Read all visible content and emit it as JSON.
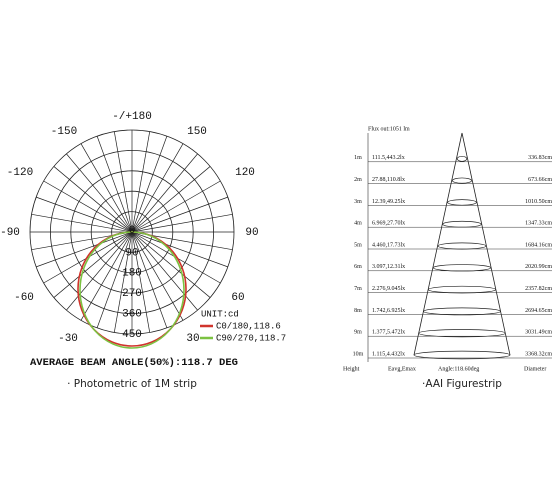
{
  "polar": {
    "angle_labels": [
      "-/+180",
      "150",
      "-150",
      "120",
      "-120",
      "90",
      "-90",
      "60",
      "-60",
      "30",
      "-30"
    ],
    "ring_labels": [
      "0",
      "90",
      "180",
      "270",
      "360",
      "450"
    ],
    "unit": "UNIT:cd",
    "legend": [
      {
        "label": "C0/180,118.6",
        "color": "#d0342c"
      },
      {
        "label": "C90/270,118.7",
        "color": "#7cc242"
      }
    ],
    "beam_angle": "AVERAGE BEAM ANGLE(50%):118.7 DEG",
    "caption": "· Photometric of 1M strip"
  },
  "cone": {
    "flux": "Flux out:1051 lm",
    "rows": [
      [
        "1m",
        "111.5,443.2lx",
        "336.83cm"
      ],
      [
        "2m",
        "27.88,110.8lx",
        "673.66cm"
      ],
      [
        "3m",
        "12.39,49.25lx",
        "1010.50cm"
      ],
      [
        "4m",
        "6.969,27.70lx",
        "1347.33cm"
      ],
      [
        "5m",
        "4.460,17.73lx",
        "1684.16cm"
      ],
      [
        "6m",
        "3.097,12.31lx",
        "2020.99cm"
      ],
      [
        "7m",
        "2.276,9.045lx",
        "2357.82cm"
      ],
      [
        "8m",
        "1.742,6.925lx",
        "2694.65cm"
      ],
      [
        "9m",
        "1.377,5.472lx",
        "3031.49cm"
      ],
      [
        "10m",
        "1.115,4.432lx",
        "3368.32cm"
      ]
    ],
    "footer": [
      "Height",
      "Eavg,Emax",
      "Angle:118.60deg",
      "Diameter"
    ],
    "caption": "·AAI Figurestrip"
  }
}
